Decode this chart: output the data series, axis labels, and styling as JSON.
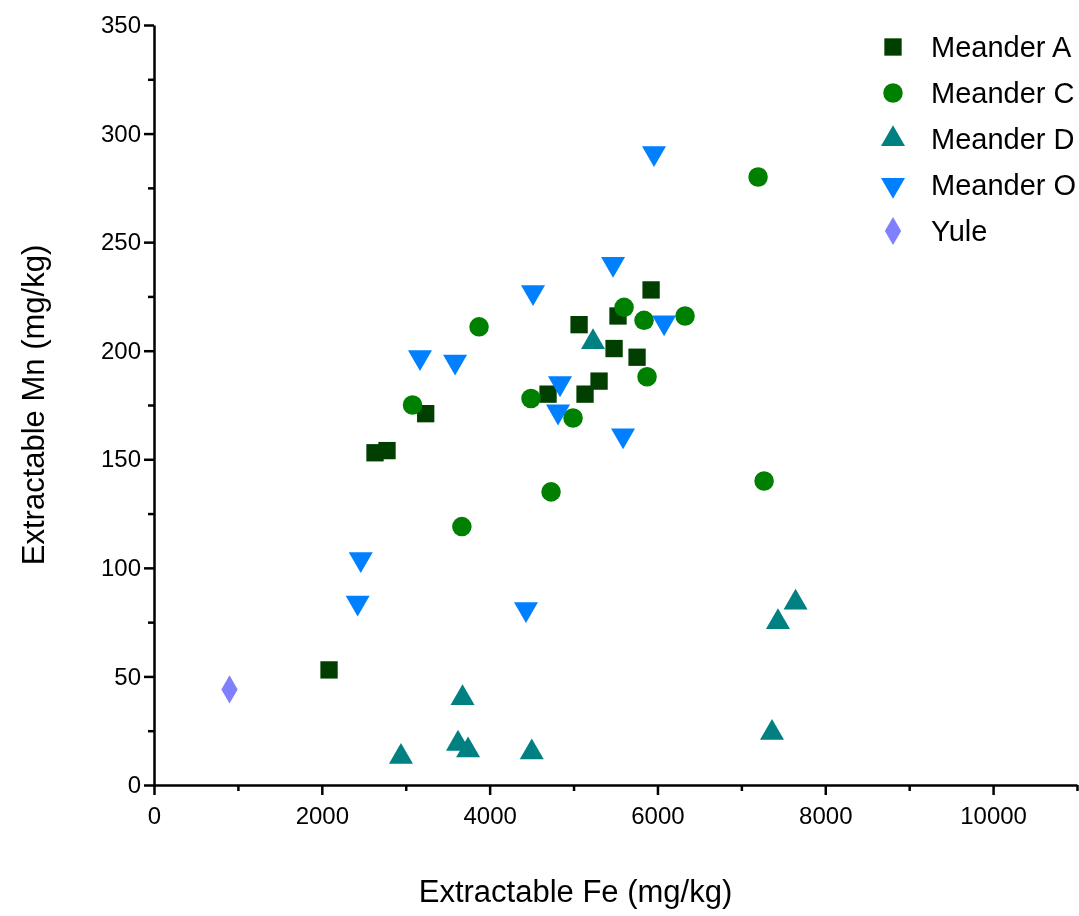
{
  "chart_data": {
    "type": "scatter",
    "xlabel": "Extractable Fe (mg/kg)",
    "ylabel": "Extractable Mn (mg/kg)",
    "xlim": [
      0,
      11000
    ],
    "ylim": [
      0,
      350
    ],
    "xticks": [
      0,
      {
        "value": 1000,
        "label": null
      },
      2000,
      {
        "value": 3000,
        "label": null
      },
      4000,
      {
        "value": 5000,
        "label": null
      },
      6000,
      {
        "value": 7000,
        "label": null
      },
      8000,
      {
        "value": 9000,
        "label": null
      },
      10000,
      {
        "value": 11000,
        "label": null
      }
    ],
    "yticks": [
      0,
      {
        "value": 25,
        "label": null
      },
      50,
      {
        "value": 75,
        "label": null
      },
      100,
      {
        "value": 125,
        "label": null
      },
      150,
      {
        "value": 175,
        "label": null
      },
      200,
      {
        "value": 225,
        "label": null
      },
      250,
      {
        "value": 275,
        "label": null
      },
      300,
      {
        "value": 325,
        "label": null
      },
      350
    ],
    "grid": false,
    "legend": "top right",
    "series": [
      {
        "name": "Meander A",
        "color": "#003f00",
        "marker": "square",
        "x": [
          2086,
          2634,
          2777,
          3238,
          4696,
          5066,
          5137,
          5304,
          5483,
          5530,
          5757,
          5924
        ],
        "values": [
          53,
          153,
          154,
          171,
          180,
          212,
          180,
          186,
          201,
          216,
          197,
          228
        ]
      },
      {
        "name": "Meander C",
        "color": "#008000",
        "marker": "circle",
        "x": [
          3081,
          3874,
          3669,
          4493,
          4732,
          4994,
          5602,
          5840,
          5876,
          6329,
          7199,
          7271
        ],
        "values": [
          175,
          211,
          119,
          178,
          135,
          169,
          220,
          214,
          188,
          216,
          280,
          140
        ]
      },
      {
        "name": "Meander D",
        "color": "#008080",
        "marker": "triangle",
        "x": [
          2943,
          3623,
          3677,
          3743,
          4502,
          5232,
          7365,
          7436,
          7646
        ],
        "values": [
          13,
          19,
          40,
          16,
          15,
          204,
          24,
          75,
          84
        ]
      },
      {
        "name": "Meander O",
        "color": "#0080ff",
        "marker": "triangle-down",
        "x": [
          2427,
          2464,
          3170,
          3588,
          4433,
          4517,
          4815,
          4839,
          5471,
          5590,
          5959,
          6079
        ],
        "values": [
          84,
          104,
          197,
          195,
          81,
          227,
          172,
          185,
          240,
          161,
          291,
          213
        ]
      },
      {
        "name": "Yule",
        "color": "#8080ff",
        "marker": "diamond",
        "x": [
          900
        ],
        "values": [
          44
        ]
      }
    ]
  }
}
